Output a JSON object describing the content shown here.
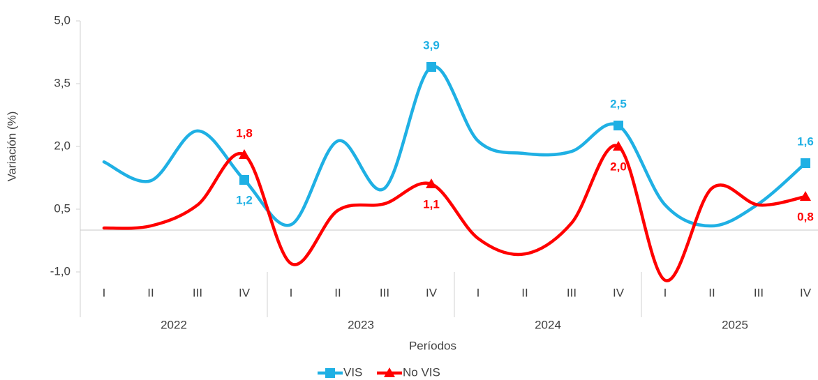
{
  "chart_data": {
    "type": "line",
    "xlabel": "Períodos",
    "ylabel": "Variación (%)",
    "categories": [
      "I",
      "II",
      "III",
      "IV",
      "I",
      "II",
      "III",
      "IV",
      "I",
      "II",
      "III",
      "IV",
      "I",
      "II",
      "III",
      "IV"
    ],
    "years": [
      "2022",
      "2023",
      "2024",
      "2025"
    ],
    "ylim": [
      -1.0,
      5.0
    ],
    "yticks": [
      {
        "value": -1.0,
        "label": "-1,0"
      },
      {
        "value": 0.5,
        "label": "0,5"
      },
      {
        "value": 2.0,
        "label": "2,0"
      },
      {
        "value": 3.5,
        "label": "3,5"
      },
      {
        "value": 5.0,
        "label": "5,0"
      }
    ],
    "series": [
      {
        "name": "VIS",
        "color": "#1fb0e4",
        "marker": "square",
        "values": [
          1.63,
          1.18,
          2.37,
          1.2,
          0.13,
          2.13,
          1.0,
          3.9,
          2.13,
          1.83,
          1.88,
          2.5,
          0.6,
          0.1,
          0.63,
          1.6
        ],
        "value_labels": [
          null,
          null,
          null,
          "1,2",
          null,
          null,
          null,
          "3,9",
          null,
          null,
          null,
          "2,5",
          null,
          null,
          null,
          "1,6"
        ]
      },
      {
        "name": "No VIS",
        "color": "#ff0000",
        "marker": "triangle",
        "values": [
          0.05,
          0.1,
          0.6,
          1.8,
          -0.8,
          0.47,
          0.63,
          1.1,
          -0.2,
          -0.57,
          0.17,
          2.0,
          -1.2,
          1.0,
          0.6,
          0.8
        ],
        "value_labels": [
          null,
          null,
          null,
          "1,8",
          null,
          null,
          null,
          "1,1",
          null,
          null,
          null,
          "2,0",
          null,
          null,
          null,
          "0,8"
        ]
      }
    ]
  }
}
